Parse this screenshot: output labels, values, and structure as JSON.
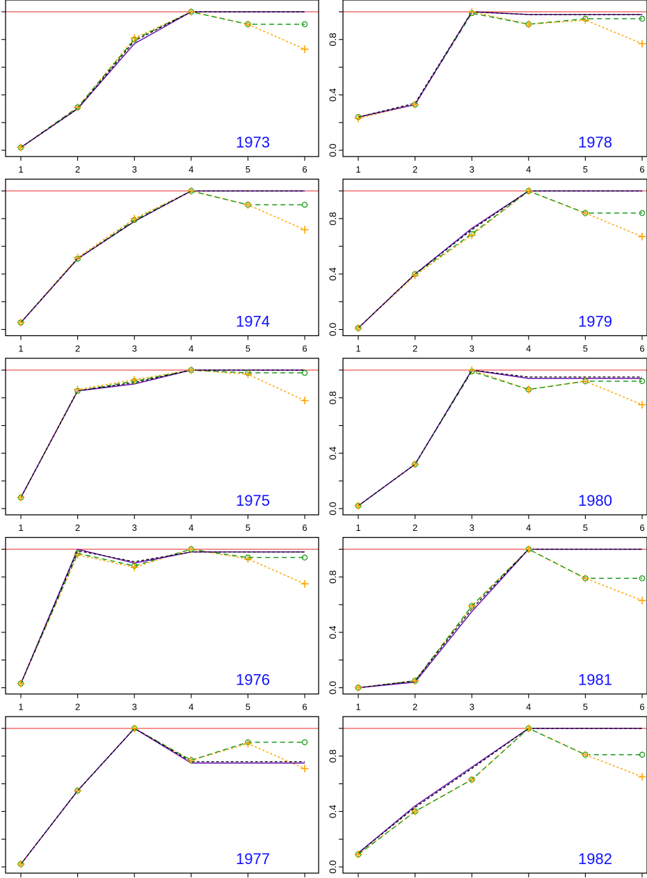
{
  "colors": {
    "reference": "#f06060",
    "purple": "#6a0dad",
    "black": "#000000",
    "green": "#1a9a1a",
    "orange": "#ffa500",
    "year": "#1010ff"
  },
  "chart_data": {
    "type": "line",
    "x_ticks": [
      1,
      2,
      3,
      4,
      5,
      6
    ],
    "y_ticks": [
      0,
      0.4,
      0.8
    ],
    "y_tick_labels": [
      "0.0",
      "0.4",
      "0.8"
    ],
    "ylim": [
      -0.02,
      1.05
    ],
    "reference_line": 1.0,
    "panels": [
      {
        "year": "1973",
        "col": 0,
        "row": 0,
        "purple": [
          0.02,
          0.3,
          0.77,
          1.0,
          1.0,
          1.0
        ],
        "black": [
          0.02,
          0.3,
          0.79,
          1.0,
          1.0,
          1.0
        ],
        "green": [
          0.02,
          0.31,
          0.8,
          1.0,
          0.91,
          0.91
        ],
        "orange": [
          0.02,
          0.31,
          0.81,
          1.0,
          0.91,
          0.73
        ]
      },
      {
        "year": "1974",
        "col": 0,
        "row": 1,
        "purple": [
          0.05,
          0.51,
          0.78,
          1.0,
          1.0,
          1.0
        ],
        "black": [
          0.05,
          0.51,
          0.78,
          1.0,
          1.0,
          1.0
        ],
        "green": [
          0.05,
          0.51,
          0.79,
          1.0,
          0.9,
          0.9
        ],
        "orange": [
          0.05,
          0.52,
          0.8,
          1.0,
          0.9,
          0.72
        ]
      },
      {
        "year": "1975",
        "col": 0,
        "row": 2,
        "purple": [
          0.08,
          0.85,
          0.9,
          1.0,
          1.0,
          1.0
        ],
        "black": [
          0.08,
          0.85,
          0.91,
          1.0,
          1.0,
          1.0
        ],
        "green": [
          0.08,
          0.85,
          0.92,
          1.0,
          0.98,
          0.98
        ],
        "orange": [
          0.08,
          0.86,
          0.93,
          1.0,
          0.97,
          0.78
        ]
      },
      {
        "year": "1976",
        "col": 0,
        "row": 3,
        "purple": [
          0.03,
          1.0,
          0.9,
          0.98,
          0.98,
          0.98
        ],
        "black": [
          0.03,
          0.99,
          0.91,
          0.98,
          0.98,
          0.98
        ],
        "green": [
          0.03,
          0.97,
          0.88,
          1.0,
          0.94,
          0.94
        ],
        "orange": [
          0.03,
          0.96,
          0.87,
          1.0,
          0.93,
          0.75
        ]
      },
      {
        "year": "1977",
        "col": 0,
        "row": 4,
        "purple": [
          0.02,
          0.55,
          1.0,
          0.75,
          0.75,
          0.75
        ],
        "black": [
          0.02,
          0.55,
          1.0,
          0.76,
          0.76,
          0.76
        ],
        "green": [
          0.02,
          0.55,
          1.0,
          0.77,
          0.9,
          0.9
        ],
        "orange": [
          0.02,
          0.55,
          1.0,
          0.77,
          0.89,
          0.71
        ]
      },
      {
        "year": "1978",
        "col": 1,
        "row": 0,
        "purple": [
          0.24,
          0.33,
          1.0,
          0.98,
          0.98,
          0.98
        ],
        "black": [
          0.24,
          0.34,
          1.0,
          0.98,
          0.98,
          0.98
        ],
        "green": [
          0.24,
          0.33,
          0.99,
          0.91,
          0.95,
          0.95
        ],
        "orange": [
          0.23,
          0.33,
          1.0,
          0.91,
          0.94,
          0.77
        ]
      },
      {
        "year": "1979",
        "col": 1,
        "row": 1,
        "purple": [
          0.01,
          0.4,
          0.73,
          1.0,
          1.0,
          1.0
        ],
        "black": [
          0.01,
          0.4,
          0.72,
          1.0,
          1.0,
          1.0
        ],
        "green": [
          0.01,
          0.4,
          0.69,
          1.0,
          0.84,
          0.84
        ],
        "orange": [
          0.01,
          0.39,
          0.68,
          1.0,
          0.84,
          0.67
        ]
      },
      {
        "year": "1980",
        "col": 1,
        "row": 2,
        "purple": [
          0.02,
          0.32,
          1.0,
          0.94,
          0.94,
          0.94
        ],
        "black": [
          0.02,
          0.32,
          1.0,
          0.95,
          0.95,
          0.95
        ],
        "green": [
          0.02,
          0.32,
          0.99,
          0.86,
          0.92,
          0.92
        ],
        "orange": [
          0.02,
          0.32,
          1.0,
          0.86,
          0.92,
          0.75
        ]
      },
      {
        "year": "1981",
        "col": 1,
        "row": 3,
        "purple": [
          0.0,
          0.04,
          0.55,
          1.0,
          1.0,
          1.0
        ],
        "black": [
          0.0,
          0.05,
          0.57,
          1.0,
          1.0,
          1.0
        ],
        "green": [
          0.0,
          0.05,
          0.59,
          1.0,
          0.79,
          0.79
        ],
        "orange": [
          0.0,
          0.05,
          0.59,
          1.0,
          0.79,
          0.63
        ]
      },
      {
        "year": "1982",
        "col": 1,
        "row": 4,
        "purple": [
          0.1,
          0.44,
          0.72,
          1.0,
          1.0,
          1.0
        ],
        "black": [
          0.1,
          0.43,
          0.71,
          1.0,
          1.0,
          1.0
        ],
        "green": [
          0.09,
          0.4,
          0.63,
          1.0,
          0.81,
          0.81
        ],
        "orange": [
          0.09,
          0.4,
          0.63,
          1.0,
          0.81,
          0.65
        ]
      }
    ]
  }
}
